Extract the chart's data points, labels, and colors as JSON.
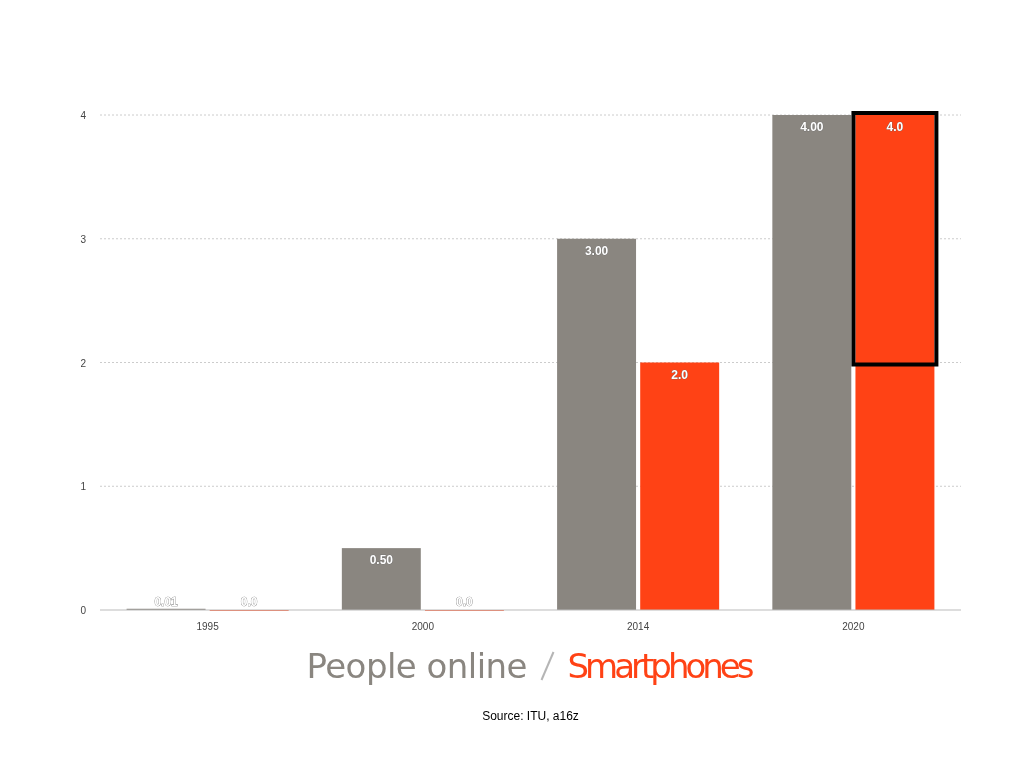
{
  "chart_data": {
    "type": "bar",
    "categories": [
      "1995",
      "2000",
      "2014",
      "2020"
    ],
    "series": [
      {
        "name": "People online",
        "color": "#8a8680",
        "values": [
          0.01,
          0.5,
          3,
          4
        ],
        "value_labels": [
          "0.01",
          "0.50",
          "3.00",
          "4.00"
        ]
      },
      {
        "name": "Smartphones",
        "color": "#ff4215",
        "values": [
          0,
          0,
          2,
          4
        ],
        "value_labels": [
          "0.0",
          "0.0",
          "2.0",
          "4.0"
        ]
      }
    ],
    "ylim": [
      0,
      4
    ],
    "yticks": [
      0,
      1,
      2,
      3,
      4
    ],
    "grid": "y",
    "legend": "bottom",
    "annotations": [
      "Source: ITU, a16z"
    ]
  }
}
